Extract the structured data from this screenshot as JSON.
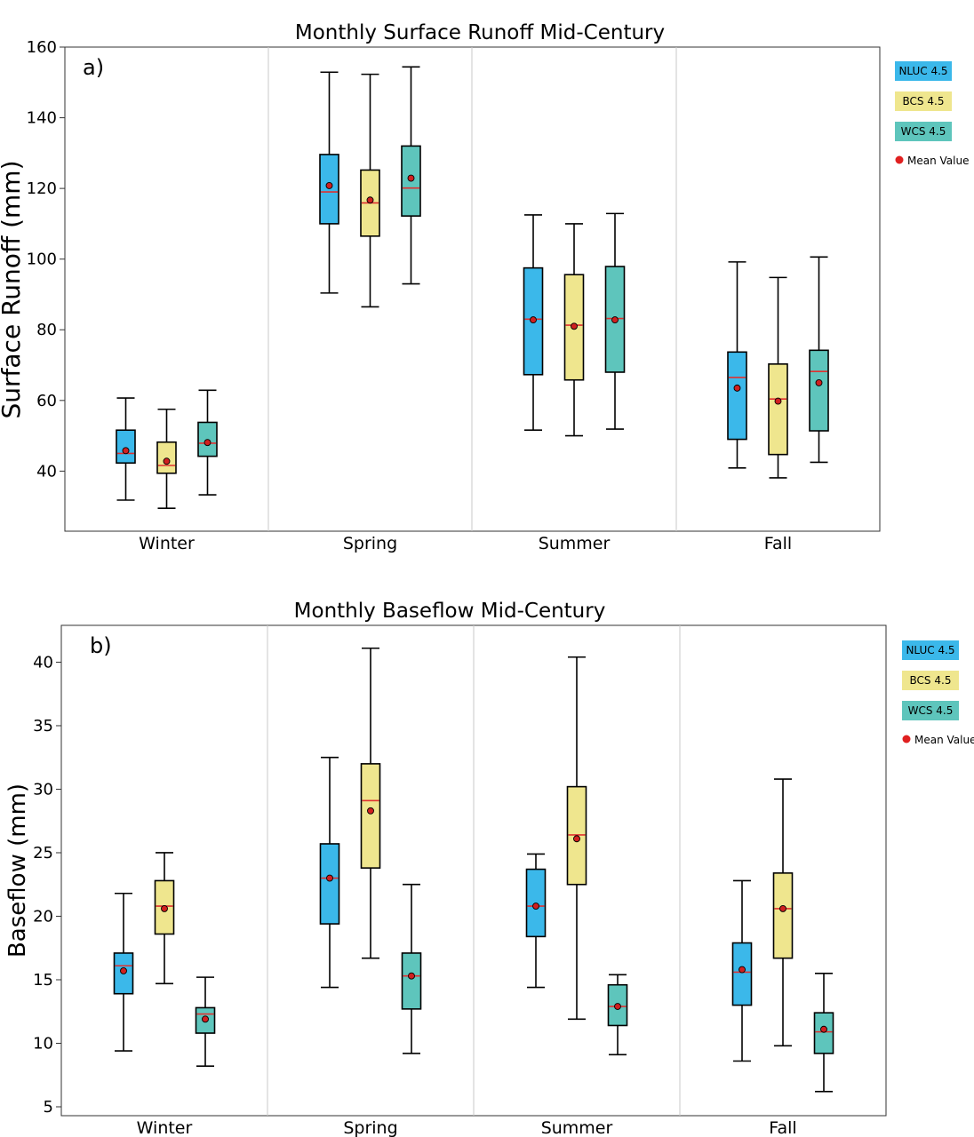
{
  "chart_data": [
    {
      "type": "box",
      "panel_label": "a)",
      "title": "Monthly Surface Runoff Mid-Century",
      "xlabel": "",
      "ylabel": "Surface Runoff (mm)",
      "ylim": [
        23,
        160
      ],
      "yticks": [
        40,
        60,
        80,
        100,
        120,
        140,
        160
      ],
      "categories": [
        "Winter",
        "Spring",
        "Summer",
        "Fall"
      ],
      "legend": [
        {
          "label": "NLUC 4.5",
          "color": "#3bb8ea"
        },
        {
          "label": "BCS 4.5",
          "color": "#efe68e"
        },
        {
          "label": "WCS 4.5",
          "color": "#5ec5bc"
        },
        {
          "label": "Mean Value",
          "color": "#e02020"
        }
      ],
      "series": [
        {
          "name": "NLUC 4.5",
          "color": "#3bb8ea",
          "boxes": [
            {
              "whislo": 31.8,
              "q1": 42.3,
              "med": 45.0,
              "q3": 51.6,
              "whishi": 60.7,
              "mean": 45.8
            },
            {
              "whislo": 90.4,
              "q1": 110.0,
              "med": 119.0,
              "q3": 129.6,
              "whishi": 152.9,
              "mean": 120.8
            },
            {
              "whislo": 51.6,
              "q1": 67.3,
              "med": 83.0,
              "q3": 97.5,
              "whishi": 112.5,
              "mean": 82.8
            },
            {
              "whislo": 40.9,
              "q1": 49.0,
              "med": 66.5,
              "q3": 73.7,
              "whishi": 99.2,
              "mean": 63.5
            }
          ]
        },
        {
          "name": "BCS 4.5",
          "color": "#efe68e",
          "boxes": [
            {
              "whislo": 29.5,
              "q1": 39.4,
              "med": 41.6,
              "q3": 48.2,
              "whishi": 57.5,
              "mean": 42.8
            },
            {
              "whislo": 86.5,
              "q1": 106.5,
              "med": 115.9,
              "q3": 125.2,
              "whishi": 152.3,
              "mean": 116.7
            },
            {
              "whislo": 50.0,
              "q1": 65.8,
              "med": 81.3,
              "q3": 95.6,
              "whishi": 110.0,
              "mean": 81.0
            },
            {
              "whislo": 38.1,
              "q1": 44.7,
              "med": 60.4,
              "q3": 70.3,
              "whishi": 94.8,
              "mean": 59.8
            }
          ]
        },
        {
          "name": "WCS 4.5",
          "color": "#5ec5bc",
          "boxes": [
            {
              "whislo": 33.3,
              "q1": 44.2,
              "med": 47.9,
              "q3": 53.8,
              "whishi": 62.9,
              "mean": 48.1
            },
            {
              "whislo": 93.0,
              "q1": 112.2,
              "med": 120.1,
              "q3": 132.0,
              "whishi": 154.4,
              "mean": 122.9
            },
            {
              "whislo": 51.9,
              "q1": 68.0,
              "med": 83.2,
              "q3": 97.9,
              "whishi": 112.9,
              "mean": 82.8
            },
            {
              "whislo": 42.5,
              "q1": 51.4,
              "med": 68.2,
              "q3": 74.2,
              "whishi": 100.6,
              "mean": 65.0
            }
          ]
        }
      ]
    },
    {
      "type": "box",
      "panel_label": "b)",
      "title": "Monthly Baseflow Mid-Century",
      "xlabel": "",
      "ylabel": "Baseflow (mm)",
      "ylim": [
        4.3,
        42.9
      ],
      "yticks": [
        5,
        10,
        15,
        20,
        25,
        30,
        35,
        40
      ],
      "categories": [
        "Winter",
        "Spring",
        "Summer",
        "Fall"
      ],
      "legend": [
        {
          "label": "NLUC 4.5",
          "color": "#3bb8ea"
        },
        {
          "label": "BCS 4.5",
          "color": "#efe68e"
        },
        {
          "label": "WCS 4.5",
          "color": "#5ec5bc"
        },
        {
          "label": "Mean Value",
          "color": "#e02020"
        }
      ],
      "series": [
        {
          "name": "NLUC 4.5",
          "color": "#3bb8ea",
          "boxes": [
            {
              "whislo": 9.4,
              "q1": 13.9,
              "med": 16.1,
              "q3": 17.1,
              "whishi": 21.8,
              "mean": 15.7
            },
            {
              "whislo": 14.4,
              "q1": 19.4,
              "med": 23.0,
              "q3": 25.7,
              "whishi": 32.5,
              "mean": 23.0
            },
            {
              "whislo": 14.4,
              "q1": 18.4,
              "med": 20.8,
              "q3": 23.7,
              "whishi": 24.9,
              "mean": 20.8
            },
            {
              "whislo": 8.6,
              "q1": 13.0,
              "med": 15.6,
              "q3": 17.9,
              "whishi": 22.8,
              "mean": 15.8
            }
          ]
        },
        {
          "name": "BCS 4.5",
          "color": "#efe68e",
          "boxes": [
            {
              "whislo": 14.7,
              "q1": 18.6,
              "med": 20.8,
              "q3": 22.8,
              "whishi": 25.0,
              "mean": 20.6
            },
            {
              "whislo": 16.7,
              "q1": 23.8,
              "med": 29.1,
              "q3": 32.0,
              "whishi": 41.1,
              "mean": 28.3
            },
            {
              "whislo": 11.9,
              "q1": 22.5,
              "med": 26.4,
              "q3": 30.2,
              "whishi": 40.4,
              "mean": 26.1
            },
            {
              "whislo": 9.8,
              "q1": 16.7,
              "med": 20.6,
              "q3": 23.4,
              "whishi": 30.8,
              "mean": 20.6
            }
          ]
        },
        {
          "name": "WCS 4.5",
          "color": "#5ec5bc",
          "boxes": [
            {
              "whislo": 8.2,
              "q1": 10.8,
              "med": 12.3,
              "q3": 12.8,
              "whishi": 15.2,
              "mean": 11.9
            },
            {
              "whislo": 9.2,
              "q1": 12.7,
              "med": 15.3,
              "q3": 17.1,
              "whishi": 22.5,
              "mean": 15.3
            },
            {
              "whislo": 9.1,
              "q1": 11.4,
              "med": 12.9,
              "q3": 14.6,
              "whishi": 15.4,
              "mean": 12.9
            },
            {
              "whislo": 6.2,
              "q1": 9.2,
              "med": 10.9,
              "q3": 12.4,
              "whishi": 15.5,
              "mean": 11.1
            }
          ]
        }
      ]
    }
  ]
}
